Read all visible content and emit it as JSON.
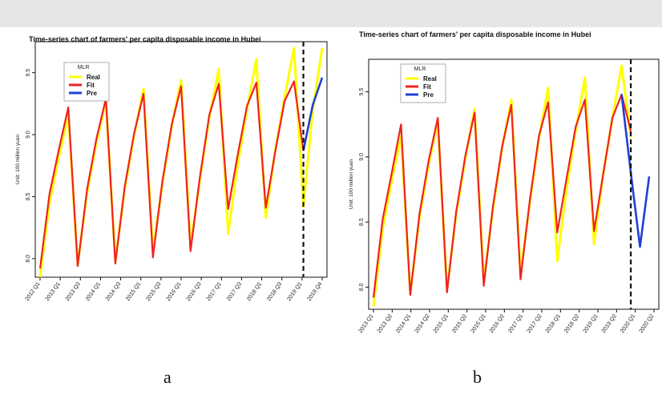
{
  "chart_data": [
    {
      "type": "line",
      "title": "Time-series chart of farmers' per capita disposable income in Hubei",
      "xlabel": "",
      "ylabel": "Unit: 100 million yuan",
      "ylim": [
        7.85,
        9.75
      ],
      "yticks": [
        "8.0",
        "8.5",
        "9.0",
        "9.5"
      ],
      "x_ticks": [
        "2012 Q1",
        "2013 Q1",
        "2013 Q3",
        "2014 Q1",
        "2014 Q3",
        "2015 Q1",
        "2015 Q3",
        "2016 Q1",
        "2016 Q3",
        "2017 Q1",
        "2017 Q3",
        "2018 Q1",
        "2018 Q3",
        "2019 Q1",
        "2019 Q4"
      ],
      "legend": {
        "title": "MLR",
        "position": "top-left"
      },
      "forecast_start_x": 28,
      "series": [
        {
          "name": "Real",
          "color": "#ffff00",
          "x": [
            0,
            1,
            2,
            3,
            4,
            5,
            6,
            7,
            8,
            9,
            10,
            11,
            12,
            13,
            14,
            15,
            16,
            17,
            18,
            19,
            20,
            21,
            22,
            23,
            24,
            25,
            26,
            27,
            28,
            29,
            30
          ],
          "values": [
            7.85,
            8.45,
            8.82,
            9.16,
            7.95,
            8.53,
            8.94,
            9.27,
            7.98,
            8.56,
            8.99,
            9.37,
            8.05,
            8.6,
            9.07,
            9.44,
            8.1,
            8.64,
            9.14,
            9.53,
            8.2,
            8.75,
            9.2,
            9.61,
            8.33,
            8.87,
            9.3,
            9.7,
            8.42,
            9.2,
            9.7
          ]
        },
        {
          "name": "Fit",
          "color": "#ee2222",
          "x": [
            0,
            1,
            2,
            3,
            4,
            5,
            6,
            7,
            8,
            9,
            10,
            11,
            12,
            13,
            14,
            15,
            16,
            17,
            18,
            19,
            20,
            21,
            22,
            23,
            24,
            25,
            26,
            27,
            28
          ],
          "values": [
            7.92,
            8.52,
            8.88,
            9.22,
            7.94,
            8.56,
            8.97,
            9.29,
            7.96,
            8.58,
            9.01,
            9.33,
            8.01,
            8.62,
            9.08,
            9.39,
            8.06,
            8.66,
            9.16,
            9.41,
            8.4,
            8.83,
            9.23,
            9.42,
            8.41,
            8.86,
            9.27,
            9.43,
            8.87
          ]
        },
        {
          "name": "Pre",
          "color": "#1f3fd8",
          "x": [
            28,
            29,
            30
          ],
          "values": [
            8.87,
            9.24,
            9.46
          ]
        }
      ]
    },
    {
      "type": "line",
      "title": "Time-series chart of farmers' per capita disposable income in Hubei",
      "xlabel": "",
      "ylabel": "Unit: 100 million yuan",
      "ylim": [
        7.83,
        9.75
      ],
      "yticks": [
        "8.0",
        "8.5",
        "9.0",
        "9.5"
      ],
      "x_ticks": [
        "2013 Q1",
        "2013 Q2",
        "2014 Q1",
        "2014 Q2",
        "2015 Q1",
        "2015 Q2",
        "2016 Q1",
        "2016 Q2",
        "2017 Q1",
        "2017 Q2",
        "2018 Q1",
        "2018 Q2",
        "2019 Q1",
        "2019 Q2",
        "2020 Q1",
        "2020 Q2"
      ],
      "legend": {
        "title": "MLR",
        "position": "top-left"
      },
      "forecast_start_x": 28,
      "series": [
        {
          "name": "Real",
          "color": "#ffff00",
          "x": [
            0,
            1,
            2,
            3,
            4,
            5,
            6,
            7,
            8,
            9,
            10,
            11,
            12,
            13,
            14,
            15,
            16,
            17,
            18,
            19,
            20,
            21,
            22,
            23,
            24,
            25,
            26,
            27,
            28
          ],
          "values": [
            7.85,
            8.45,
            8.82,
            9.16,
            7.95,
            8.53,
            8.94,
            9.27,
            7.98,
            8.56,
            8.99,
            9.37,
            8.05,
            8.6,
            9.07,
            9.44,
            8.1,
            8.64,
            9.14,
            9.53,
            8.2,
            8.75,
            9.2,
            9.61,
            8.33,
            8.87,
            9.3,
            9.7,
            9.15
          ]
        },
        {
          "name": "Fit",
          "color": "#ee2222",
          "x": [
            0,
            1,
            2,
            3,
            4,
            5,
            6,
            7,
            8,
            9,
            10,
            11,
            12,
            13,
            14,
            15,
            16,
            17,
            18,
            19,
            20,
            21,
            22,
            23,
            24,
            25,
            26,
            27,
            28
          ],
          "values": [
            7.92,
            8.52,
            8.88,
            9.25,
            7.94,
            8.56,
            8.97,
            9.3,
            7.96,
            8.58,
            9.01,
            9.34,
            8.01,
            8.62,
            9.08,
            9.4,
            8.06,
            8.66,
            9.16,
            9.42,
            8.42,
            8.83,
            9.23,
            9.44,
            8.43,
            8.87,
            9.3,
            9.48,
            9.2
          ]
        },
        {
          "name": "Pre",
          "color": "#1f3fd8",
          "x": [
            27,
            28,
            29,
            30
          ],
          "values": [
            9.48,
            8.88,
            8.31,
            8.85
          ]
        }
      ]
    }
  ],
  "labels": {
    "a": "a",
    "b": "b"
  }
}
